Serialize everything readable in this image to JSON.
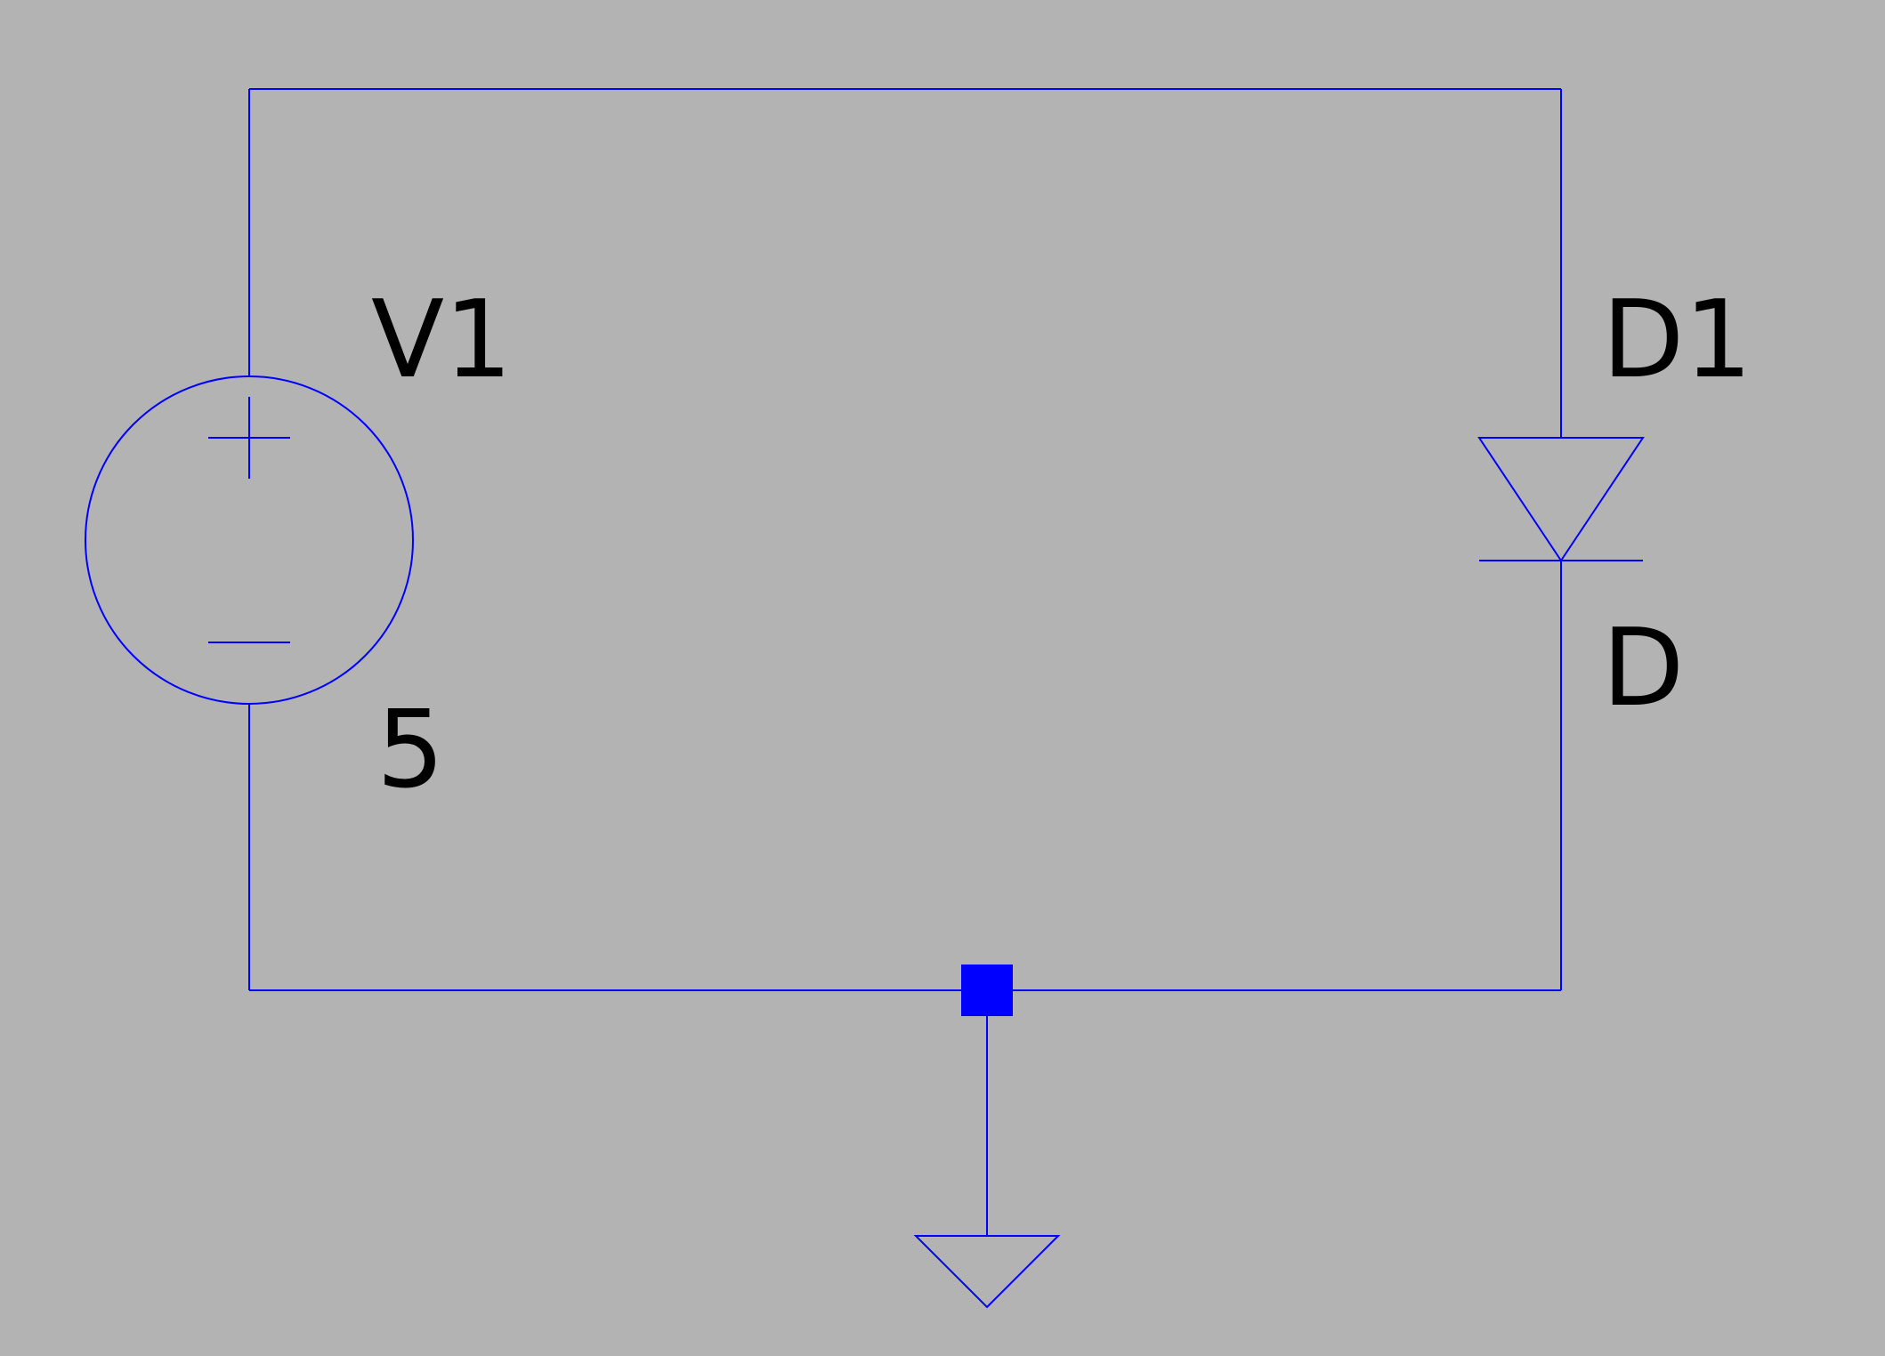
{
  "schematic": {
    "background_color": "#b3b3b3",
    "wire_color": "#0000ff",
    "text_color": "#000000",
    "components": [
      {
        "id": "voltage-source",
        "type": "voltage-source",
        "name": "V1",
        "value": "5"
      },
      {
        "id": "diode",
        "type": "diode",
        "name": "D1",
        "model": "D"
      },
      {
        "id": "ground",
        "type": "ground"
      }
    ],
    "junctions": 1
  }
}
